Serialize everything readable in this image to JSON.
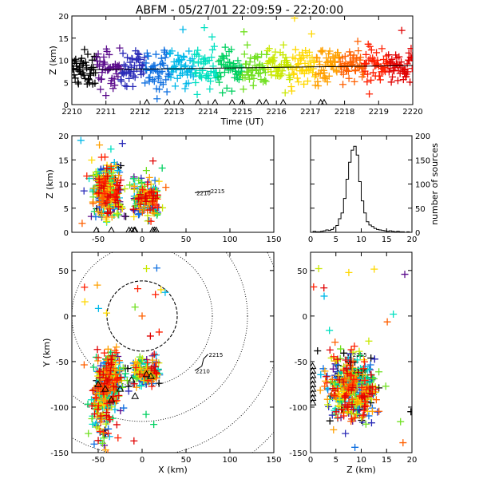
{
  "title": "ABFM - 05/27/01 22:09:59 - 22:20:00",
  "colors": {
    "palette": [
      "#000000",
      "#5b0c8c",
      "#2a2bb8",
      "#1070e0",
      "#00b8e8",
      "#00e0c0",
      "#00d060",
      "#70e020",
      "#c8e800",
      "#ffd800",
      "#ffa000",
      "#ff6000",
      "#ff1e00",
      "#e00000"
    ],
    "stations": "#000000"
  },
  "chart_data": [
    {
      "id": "time_height",
      "type": "scatter",
      "xlabel": "Time (UT)",
      "ylabel": "Z (km)",
      "xlim": [
        2210,
        2220
      ],
      "ylim": [
        0,
        20
      ],
      "xticks": [
        "2210",
        "2211",
        "2212",
        "2213",
        "2214",
        "2215",
        "2216",
        "2217",
        "2218",
        "2219",
        "2220"
      ],
      "yticks": [
        "0",
        "5",
        "10",
        "15",
        "20"
      ],
      "marker": "+",
      "color_by": "time",
      "series": [
        {
          "x": [
            2210.0,
            2210.3,
            2210.6,
            2210.9,
            2211.2,
            2211.5,
            2211.8,
            2212.1,
            2212.5,
            2212.9,
            2213.3,
            2213.7,
            2214.1,
            2214.5,
            2214.9,
            2215.3,
            2215.7,
            2216.1,
            2216.5,
            2216.9,
            2217.3,
            2217.7,
            2218.1,
            2218.5,
            2218.9,
            2219.3,
            2219.7,
            2220.0
          ],
          "y": [
            7.5,
            8.0,
            7.0,
            8.5,
            7.5,
            9.0,
            7.0,
            8.0,
            8.5,
            7.0,
            9.0,
            8.0,
            7.5,
            10.0,
            8.5,
            9.5,
            7.5,
            9.0,
            10.5,
            8.0,
            9.5,
            10.0,
            8.5,
            9.0,
            8.0,
            9.0,
            10.0,
            9.0
          ]
        }
      ],
      "trend_line": {
        "x": [
          2210,
          2220
        ],
        "y": [
          7.8,
          8.8
        ]
      },
      "station_times": [
        2212.2,
        2212.8,
        2213.2,
        2213.7,
        2214.2,
        2214.7,
        2215.0,
        2215.5,
        2215.7,
        2216.2,
        2217.3,
        2217.4
      ]
    },
    {
      "id": "x_height",
      "type": "scatter",
      "xlabel": "",
      "ylabel": "Z (km)",
      "xlim": [
        -80,
        150
      ],
      "ylim": [
        0,
        20
      ],
      "xticks": [
        "-50",
        "0",
        "50",
        "100",
        "150"
      ],
      "yticks": [
        "0",
        "5",
        "10",
        "15",
        "20"
      ],
      "marker": "+",
      "color_by": "time",
      "annotations": [
        {
          "text": "2210",
          "x": 61,
          "y": 8.2
        },
        {
          "text": "2215",
          "x": 77,
          "y": 8.6
        }
      ],
      "station_x": [
        -52,
        -35,
        -15,
        -12,
        -9,
        -8,
        12,
        14,
        16
      ]
    },
    {
      "id": "height_histogram",
      "type": "bar",
      "xlabel": "",
      "ylabel": "number of sources",
      "ylabel_side": "right",
      "xlim": [
        0,
        20
      ],
      "ylim": [
        0,
        200
      ],
      "xticks": [
        "0",
        "5",
        "10",
        "15",
        "20"
      ],
      "yticks": [
        "0",
        "50",
        "100",
        "150",
        "200"
      ],
      "categories": [
        0,
        0.5,
        1,
        1.5,
        2,
        2.5,
        3,
        3.5,
        4,
        4.5,
        5,
        5.5,
        6,
        6.5,
        7,
        7.5,
        8,
        8.5,
        9,
        9.5,
        10,
        10.5,
        11,
        11.5,
        12,
        12.5,
        13,
        13.5,
        14,
        14.5,
        15,
        15.5,
        16,
        16.5,
        17,
        17.5,
        18,
        18.5,
        19,
        19.5
      ],
      "values": [
        0,
        2,
        1,
        1,
        2,
        3,
        5,
        4,
        6,
        10,
        14,
        28,
        40,
        70,
        110,
        145,
        170,
        178,
        160,
        105,
        65,
        40,
        22,
        15,
        12,
        8,
        6,
        5,
        4,
        3,
        2,
        3,
        2,
        1,
        2,
        1,
        1,
        0,
        1,
        0
      ]
    },
    {
      "id": "plan_view",
      "type": "scatter",
      "xlabel": "X (km)",
      "ylabel": "Y (km)",
      "xlim": [
        -80,
        150
      ],
      "ylim": [
        -150,
        70
      ],
      "xticks": [
        "-50",
        "0",
        "50",
        "100",
        "150"
      ],
      "yticks": [
        "-150",
        "-100",
        "-50",
        "0",
        "50"
      ],
      "marker": "+",
      "color_by": "time",
      "range_rings_km": [
        40,
        80,
        120,
        160,
        200
      ],
      "annotations": [
        {
          "text": "2210",
          "x": 60,
          "y": -60
        },
        {
          "text": "2215",
          "x": 75,
          "y": -42
        }
      ]
    },
    {
      "id": "height_y",
      "type": "scatter",
      "xlabel": "Z (km)",
      "ylabel": "",
      "xlim": [
        0,
        20
      ],
      "ylim": [
        -150,
        70
      ],
      "xticks": [
        "0",
        "5",
        "10",
        "15",
        "20"
      ],
      "yticks": [
        "-150",
        "-100",
        "-50",
        "0",
        "50"
      ],
      "marker": "+",
      "color_by": "time",
      "annotations": [
        {
          "text": "2215",
          "x": 8,
          "y": -42
        },
        {
          "text": "2210",
          "x": 8,
          "y": -60
        }
      ]
    }
  ]
}
